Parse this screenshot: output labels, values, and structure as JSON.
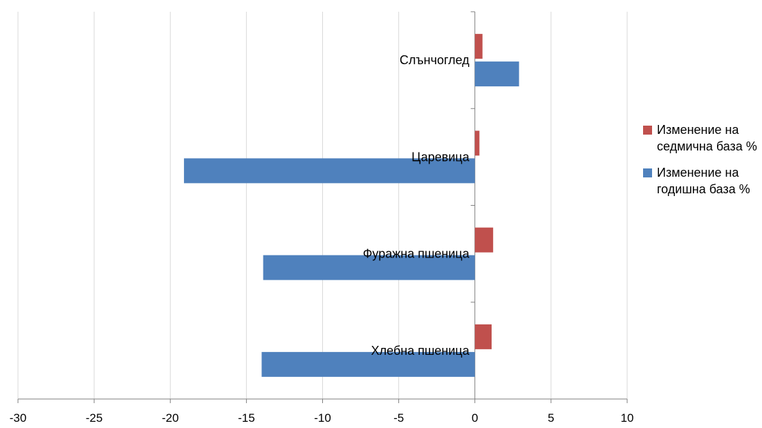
{
  "chart_data": {
    "type": "bar",
    "orientation": "horizontal",
    "categories": [
      "Хлебна пшеница",
      "Фуражна пшеница",
      "Царевица",
      "Слънчоглед"
    ],
    "series": [
      {
        "name": "Изменение на годишна база %",
        "values": [
          -14.0,
          -13.9,
          -19.1,
          2.9
        ],
        "color": "#4F81BD"
      },
      {
        "name": "Изменение на седмична база %",
        "values": [
          1.1,
          1.2,
          0.3,
          0.5
        ],
        "color": "#C0504D"
      }
    ],
    "xlim": [
      -30,
      10
    ],
    "xticks": [
      "-30",
      "-25",
      "-20",
      "-15",
      "-10",
      "-5",
      "0",
      "5",
      "10"
    ],
    "grid": true,
    "legend_position": "right"
  },
  "legend": [
    {
      "label": "Изменение на седмична база %",
      "color": "#C0504D"
    },
    {
      "label": "Изменение на годишна база %",
      "color": "#4F81BD"
    }
  ]
}
